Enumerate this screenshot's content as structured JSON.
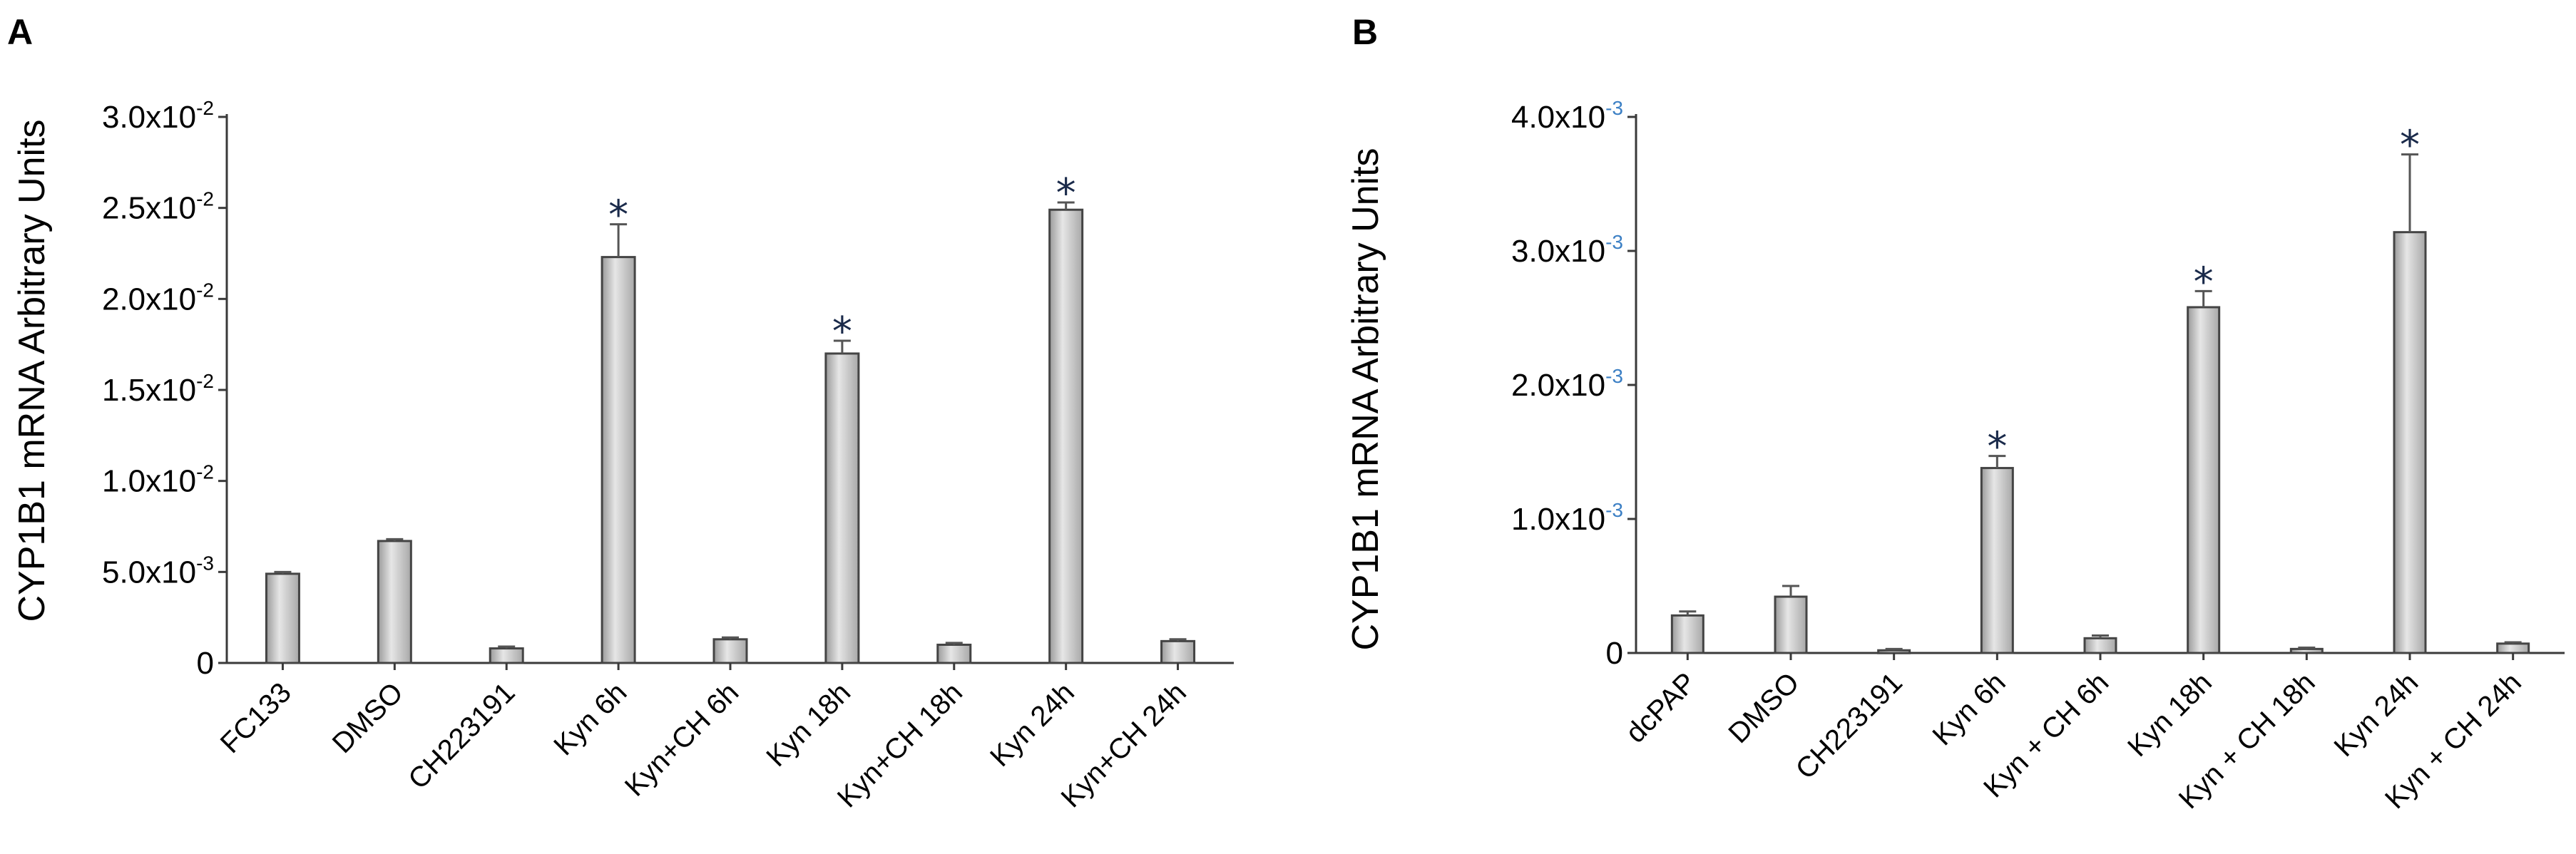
{
  "chart_data": [
    {
      "type": "bar",
      "panel_label": "A",
      "ylabel": "CYP1B1 mRNA Arbitrary Units",
      "xlabel": "",
      "ylim": [
        0,
        0.03
      ],
      "yticks": [
        {
          "value": 0,
          "label": "0"
        },
        {
          "value": 0.005,
          "label": "5.0x10-3",
          "mant": "5.0x10",
          "exp": "-3"
        },
        {
          "value": 0.01,
          "label": "1.0x10-2",
          "mant": "1.0x10",
          "exp": "-2"
        },
        {
          "value": 0.015,
          "label": "1.5x10-2",
          "mant": "1.5x10",
          "exp": "-2"
        },
        {
          "value": 0.02,
          "label": "2.0x10-2",
          "mant": "2.0x10",
          "exp": "-2"
        },
        {
          "value": 0.025,
          "label": "2.5x10-2",
          "mant": "2.5x10",
          "exp": "-2"
        },
        {
          "value": 0.03,
          "label": "3.0x10-2",
          "mant": "3.0x10",
          "exp": "-2"
        }
      ],
      "categories": [
        "FC133",
        "DMSO",
        "CH223191",
        "Kyn 6h",
        "Kyn+CH 6h",
        "Kyn 18h",
        "Kyn+CH 18h",
        "Kyn 24h",
        "Kyn+CH 24h"
      ],
      "values": [
        0.0049,
        0.0067,
        0.0008,
        0.0223,
        0.0013,
        0.017,
        0.001,
        0.0249,
        0.0012
      ],
      "errors": [
        0.0001,
        0.0001,
        0.0001,
        0.0018,
        0.0001,
        0.0007,
        0.0001,
        0.0004,
        0.0001
      ],
      "significant": [
        false,
        false,
        false,
        true,
        false,
        true,
        false,
        true,
        false
      ],
      "significance_marker": "*",
      "grid": false,
      "colors": {
        "bar": "#c8c8c8",
        "bar_edge": "#444444",
        "error": "#555555",
        "marker": "#1a2a4a"
      }
    },
    {
      "type": "bar",
      "panel_label": "B",
      "ylabel": "CYP1B1 mRNA Arbitrary Units",
      "xlabel": "",
      "ylim": [
        0,
        0.004
      ],
      "yticks": [
        {
          "value": 0,
          "label": "0"
        },
        {
          "value": 0.001,
          "label": "1.0x10-3",
          "mant": "1.0x10",
          "exp": "-3"
        },
        {
          "value": 0.002,
          "label": "2.0x10-3",
          "mant": "2.0x10",
          "exp": "-3"
        },
        {
          "value": 0.003,
          "label": "3.0x10-3",
          "mant": "3.0x10",
          "exp": "-3"
        },
        {
          "value": 0.004,
          "label": "4.0x10-3",
          "mant": "4.0x10",
          "exp": "-3"
        }
      ],
      "categories": [
        "dcPAP",
        "DMSO",
        "CH223191",
        "Kyn 6h",
        "Kyn + CH 6h",
        "Kyn 18h",
        "Kyn + CH 18h",
        "Kyn 24h",
        "Kyn + CH 24h"
      ],
      "values": [
        0.00028,
        0.00042,
        2e-05,
        0.00138,
        0.00011,
        0.00258,
        3e-05,
        0.00314,
        7e-05
      ],
      "errors": [
        3e-05,
        8e-05,
        1e-05,
        9e-05,
        2e-05,
        0.00012,
        1e-05,
        0.00058,
        1e-05
      ],
      "significant": [
        false,
        false,
        false,
        true,
        false,
        true,
        false,
        true,
        false
      ],
      "significance_marker": "*",
      "grid": false,
      "colors": {
        "bar": "#c8c8c8",
        "bar_edge": "#444444",
        "error": "#555555",
        "marker": "#1a2a4a",
        "exponent": "#3b7fc4"
      }
    }
  ]
}
